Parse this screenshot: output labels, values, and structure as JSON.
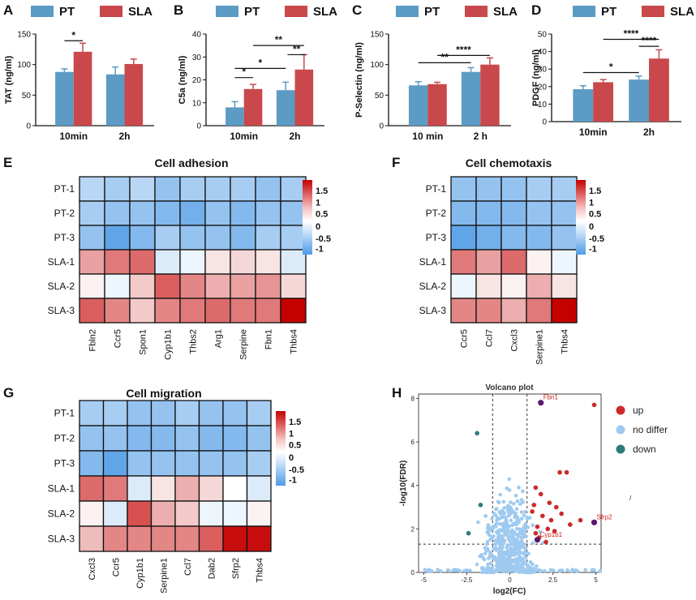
{
  "colors": {
    "pt": "#5b9bc4",
    "sla": "#c9484b",
    "up": "#cc2a2a",
    "no_differ": "#9fcaf0",
    "down": "#2e7b7b",
    "highlight": "#5a1a6e",
    "heat_low": "#4f9be6",
    "heat_mid": "#ffffff",
    "heat_high": "#c40000"
  },
  "bar_legend": {
    "pt": "PT",
    "sla": "SLA"
  },
  "chart_data": [
    {
      "panel": "A",
      "type": "bar",
      "ylabel": "TAT (ng/ml)",
      "categories": [
        "10min",
        "2h"
      ],
      "ylim": [
        0,
        150
      ],
      "yticks": [
        0,
        50,
        100,
        150
      ],
      "series": [
        {
          "name": "PT",
          "values": [
            88,
            84
          ],
          "errors": [
            5,
            12
          ]
        },
        {
          "name": "SLA",
          "values": [
            121,
            101
          ],
          "errors": [
            14,
            8
          ]
        }
      ],
      "significance": [
        {
          "from": "PT-10min",
          "to": "SLA-10min",
          "label": "*",
          "y": 139
        }
      ]
    },
    {
      "panel": "B",
      "type": "bar",
      "ylabel": "C5a (ng/ml)",
      "categories": [
        "10min",
        "2h"
      ],
      "ylim": [
        0,
        40
      ],
      "yticks": [
        0,
        10,
        20,
        30,
        40
      ],
      "series": [
        {
          "name": "PT",
          "values": [
            8,
            15.5
          ],
          "errors": [
            2.5,
            3.5
          ]
        },
        {
          "name": "SLA",
          "values": [
            16,
            24.5
          ],
          "errors": [
            2,
            6.5
          ]
        }
      ],
      "significance": [
        {
          "from": "PT-10min",
          "to": "SLA-10min",
          "label": "*",
          "y": 21
        },
        {
          "from": "PT-10min",
          "to": "PT-2h",
          "label": "*",
          "y": 25
        },
        {
          "from": "SLA-10min",
          "to": "SLA-2h",
          "label": "**",
          "y": 35
        },
        {
          "from": "SLA-2h",
          "to": "SLA-2h",
          "label": "**",
          "y": 31,
          "partial": true
        }
      ]
    },
    {
      "panel": "C",
      "type": "bar",
      "ylabel": "P-Selectin (ng/ml)",
      "categories": [
        "10 min",
        "2 h"
      ],
      "ylim": [
        0,
        150
      ],
      "yticks": [
        0,
        50,
        100,
        150
      ],
      "series": [
        {
          "name": "PT",
          "values": [
            66,
            88
          ],
          "errors": [
            6,
            7
          ]
        },
        {
          "name": "SLA",
          "values": [
            68,
            100
          ],
          "errors": [
            3,
            11
          ]
        }
      ],
      "significance": [
        {
          "from": "PT-10min",
          "to": "PT-2h",
          "label": "**",
          "y": 103
        },
        {
          "from": "SLA-10min",
          "to": "SLA-2h",
          "label": "****",
          "y": 115
        }
      ]
    },
    {
      "panel": "D",
      "type": "bar",
      "ylabel": "PDGF (ng/ml)",
      "categories": [
        "10min",
        "2h"
      ],
      "ylim": [
        0,
        50
      ],
      "yticks": [
        0,
        10,
        20,
        30,
        40,
        50
      ],
      "series": [
        {
          "name": "PT",
          "values": [
            18.5,
            24
          ],
          "errors": [
            2,
            2
          ]
        },
        {
          "name": "SLA",
          "values": [
            22.5,
            36
          ],
          "errors": [
            1.5,
            5
          ]
        }
      ],
      "significance": [
        {
          "from": "PT-10min",
          "to": "PT-2h",
          "label": "*",
          "y": 28
        },
        {
          "from": "SLA-10min",
          "to": "SLA-2h",
          "label": "****",
          "y": 47
        },
        {
          "from": "PT-2h",
          "to": "SLA-2h",
          "label": "****",
          "y": 43
        }
      ]
    },
    {
      "panel": "E",
      "type": "heatmap",
      "title": "Cell adhesion",
      "rows": [
        "PT-1",
        "PT-2",
        "PT-3",
        "SLA-1",
        "SLA-2",
        "SLA-3"
      ],
      "columns": [
        "Fbln2",
        "Ccr5",
        "Spon1",
        "Cyp1b1",
        "Thbs2",
        "Arg1",
        "Serpine",
        "Fbn1",
        "Thbs4"
      ],
      "scale_ticks": [
        "1.5",
        "1",
        "0.5",
        "0",
        "-0.5",
        "-1"
      ],
      "values": [
        [
          -0.4,
          -0.5,
          -0.4,
          -0.6,
          -0.5,
          -0.5,
          -0.5,
          -0.6,
          -0.5
        ],
        [
          -0.5,
          -0.6,
          -0.6,
          -0.7,
          -0.8,
          -0.6,
          -0.7,
          -0.6,
          -0.6
        ],
        [
          -0.6,
          -0.9,
          -0.7,
          -0.5,
          -0.6,
          -0.6,
          -0.7,
          -0.5,
          -0.5
        ],
        [
          0.7,
          1.0,
          1.1,
          -0.2,
          -0.1,
          0.2,
          0.3,
          0.2,
          -0.2
        ],
        [
          0.1,
          -0.1,
          0.4,
          1.2,
          0.9,
          0.6,
          0.7,
          0.8,
          0.3
        ],
        [
          1.2,
          0.9,
          0.4,
          0.9,
          1.0,
          1.1,
          1.0,
          1.0,
          1.9
        ]
      ]
    },
    {
      "panel": "F",
      "type": "heatmap",
      "title": "Cell chemotaxis",
      "rows": [
        "PT-1",
        "PT-2",
        "PT-3",
        "SLA-1",
        "SLA-2",
        "SLA-3"
      ],
      "columns": [
        "Ccr5",
        "Ccl7",
        "Cxcl3",
        "Serpine1",
        "Thbs4"
      ],
      "scale_ticks": [
        "1.5",
        "1",
        "0.5",
        "0",
        "-0.5",
        "-1"
      ],
      "values": [
        [
          -0.6,
          -0.6,
          -0.6,
          -0.5,
          -0.5
        ],
        [
          -0.7,
          -0.7,
          -0.7,
          -0.6,
          -0.6
        ],
        [
          -0.9,
          -0.8,
          -0.7,
          -0.7,
          -0.6
        ],
        [
          1.0,
          0.7,
          1.1,
          0.1,
          -0.1
        ],
        [
          -0.1,
          0.2,
          0.1,
          0.6,
          0.2
        ],
        [
          0.9,
          0.9,
          0.6,
          1.0,
          1.9
        ]
      ]
    },
    {
      "panel": "G",
      "type": "heatmap",
      "title": "Cell migration",
      "rows": [
        "PT-1",
        "PT-2",
        "PT-3",
        "SLA-1",
        "SLA-2",
        "SLA-3"
      ],
      "columns": [
        "Cxcl3",
        "Ccr5",
        "Cyp1b1",
        "Serpine1",
        "Ccl7",
        "Dab2",
        "Sfrp2",
        "Thbs4"
      ],
      "scale_ticks": [
        "1.5",
        "1",
        "0.5",
        "0",
        "-0.5",
        "-1"
      ],
      "values": [
        [
          -0.5,
          -0.5,
          -0.6,
          -0.6,
          -0.5,
          -0.6,
          -0.6,
          -0.5
        ],
        [
          -0.6,
          -0.6,
          -0.7,
          -0.7,
          -0.6,
          -0.7,
          -0.7,
          -0.6
        ],
        [
          -0.7,
          -0.9,
          -0.6,
          -0.6,
          -0.6,
          -0.6,
          -0.6,
          -0.5
        ],
        [
          1.1,
          1.0,
          -0.2,
          0.2,
          0.6,
          0.3,
          0.0,
          -0.2
        ],
        [
          0.1,
          -0.2,
          1.3,
          0.6,
          0.4,
          -0.1,
          -0.1,
          0.1
        ],
        [
          0.5,
          0.9,
          0.9,
          0.9,
          0.9,
          1.2,
          1.8,
          1.8
        ]
      ]
    },
    {
      "panel": "H",
      "type": "scatter",
      "title": "Volcano plot",
      "xlabel": "log2(FC)",
      "ylabel": "-log10(FDR)",
      "xlim": [
        -5.3,
        5.3
      ],
      "ylim": [
        0,
        8.2
      ],
      "xticks": [
        -5,
        -2.5,
        0,
        2.5,
        5
      ],
      "yticks": [
        0,
        2,
        4,
        6,
        8
      ],
      "thresholds": {
        "fc": [
          -1,
          1
        ],
        "fdr": 1.3
      },
      "legend": [
        "up",
        "no differ",
        "down"
      ],
      "up_points": [
        [
          1.5,
          3.9
        ],
        [
          1.8,
          3.6
        ],
        [
          2.3,
          3.2
        ],
        [
          1.4,
          3.1
        ],
        [
          1.9,
          2.6
        ],
        [
          2.4,
          2.4
        ],
        [
          1.6,
          2.1
        ],
        [
          2.2,
          2.0
        ],
        [
          2.6,
          1.9
        ],
        [
          3.0,
          2.7
        ],
        [
          3.5,
          2.2
        ],
        [
          1.7,
          1.6
        ],
        [
          2.1,
          1.4
        ],
        [
          2.9,
          4.6
        ],
        [
          3.3,
          4.6
        ],
        [
          4.1,
          2.4
        ],
        [
          1.3,
          2.8
        ],
        [
          2.7,
          3.0
        ],
        [
          1.5,
          1.8
        ],
        [
          4.9,
          7.7
        ]
      ],
      "down_points": [
        [
          -1.9,
          6.4
        ],
        [
          -1.7,
          3.1
        ],
        [
          -2.4,
          1.8
        ]
      ],
      "labeled_genes": [
        {
          "name": "Fbn1",
          "x": 1.8,
          "y": 7.8
        },
        {
          "name": "Sfrp2",
          "x": 4.9,
          "y": 2.3
        },
        {
          "name": "Cyp1b1",
          "x": 1.6,
          "y": 1.5
        }
      ]
    }
  ],
  "panel_letters": [
    "A",
    "B",
    "C",
    "D",
    "E",
    "F",
    "G",
    "H"
  ],
  "footnote_mark": "/"
}
